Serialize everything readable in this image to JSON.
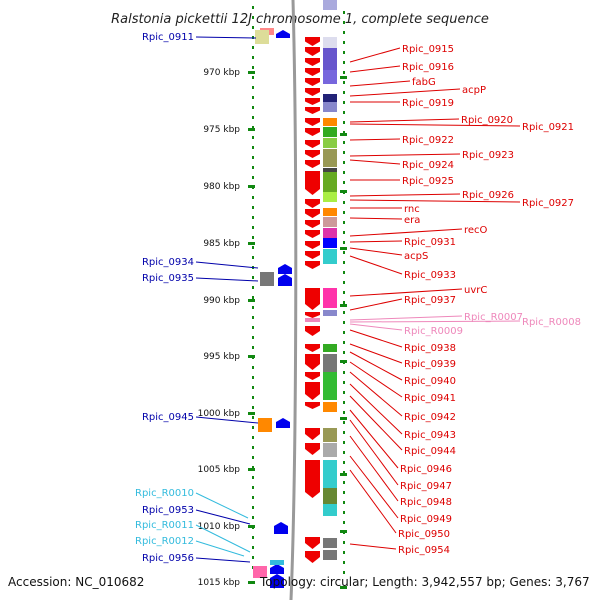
{
  "title": "Ralstonia pickettii 12J chromosome 1, complete sequence",
  "accession": "Accession: NC_010682",
  "topology": "Topology: circular; Length: 3,942,557 bp; Genes: 3,767",
  "colors": {
    "forward_label": "#dd0000",
    "reverse_label": "#0000aa",
    "rna_forward": "#ee88bb",
    "rna_reverse": "#33bbdd",
    "backbone": "#999999",
    "dots": "#118811"
  },
  "ticks": [
    "970 kbp",
    "975 kbp",
    "980 kbp",
    "985 kbp",
    "990 kbp",
    "995 kbp",
    "1000 kbp",
    "1005 kbp",
    "1010 kbp",
    "1015 kbp"
  ],
  "left_labels": [
    {
      "text": "Rpic_0911",
      "kind": "gene"
    },
    {
      "text": "Rpic_0934",
      "kind": "gene"
    },
    {
      "text": "Rpic_0935",
      "kind": "gene"
    },
    {
      "text": "Rpic_0945",
      "kind": "gene"
    },
    {
      "text": "Rpic_R0010",
      "kind": "rna"
    },
    {
      "text": "Rpic_0953",
      "kind": "gene"
    },
    {
      "text": "Rpic_R0011",
      "kind": "rna"
    },
    {
      "text": "Rpic_R0012",
      "kind": "rna"
    },
    {
      "text": "Rpic_0956",
      "kind": "gene"
    }
  ],
  "right_labels": [
    {
      "text": "Rpic_0915",
      "kind": "gene"
    },
    {
      "text": "Rpic_0916",
      "kind": "gene"
    },
    {
      "text": "fabG",
      "kind": "gene"
    },
    {
      "text": "acpP",
      "kind": "gene"
    },
    {
      "text": "Rpic_0919",
      "kind": "gene"
    },
    {
      "text": "Rpic_0920",
      "kind": "gene"
    },
    {
      "text": "Rpic_0921",
      "kind": "gene"
    },
    {
      "text": "Rpic_0922",
      "kind": "gene"
    },
    {
      "text": "Rpic_0923",
      "kind": "gene"
    },
    {
      "text": "Rpic_0924",
      "kind": "gene"
    },
    {
      "text": "Rpic_0925",
      "kind": "gene"
    },
    {
      "text": "Rpic_0926",
      "kind": "gene"
    },
    {
      "text": "Rpic_0927",
      "kind": "gene"
    },
    {
      "text": "rnc",
      "kind": "gene"
    },
    {
      "text": "era",
      "kind": "gene"
    },
    {
      "text": "recO",
      "kind": "gene"
    },
    {
      "text": "Rpic_0931",
      "kind": "gene"
    },
    {
      "text": "acpS",
      "kind": "gene"
    },
    {
      "text": "Rpic_0933",
      "kind": "gene"
    },
    {
      "text": "uvrC",
      "kind": "gene"
    },
    {
      "text": "Rpic_0937",
      "kind": "gene"
    },
    {
      "text": "Rpic_R0007",
      "kind": "rna"
    },
    {
      "text": "Rpic_R0008",
      "kind": "rna"
    },
    {
      "text": "Rpic_R0009",
      "kind": "rna"
    },
    {
      "text": "Rpic_0938",
      "kind": "gene"
    },
    {
      "text": "Rpic_0939",
      "kind": "gene"
    },
    {
      "text": "Rpic_0940",
      "kind": "gene"
    },
    {
      "text": "Rpic_0941",
      "kind": "gene"
    },
    {
      "text": "Rpic_0942",
      "kind": "gene"
    },
    {
      "text": "Rpic_0943",
      "kind": "gene"
    },
    {
      "text": "Rpic_0944",
      "kind": "gene"
    },
    {
      "text": "Rpic_0946",
      "kind": "gene"
    },
    {
      "text": "Rpic_0947",
      "kind": "gene"
    },
    {
      "text": "Rpic_0948",
      "kind": "gene"
    },
    {
      "text": "Rpic_0949",
      "kind": "gene"
    },
    {
      "text": "Rpic_0950",
      "kind": "gene"
    },
    {
      "text": "Rpic_0954",
      "kind": "gene"
    }
  ]
}
